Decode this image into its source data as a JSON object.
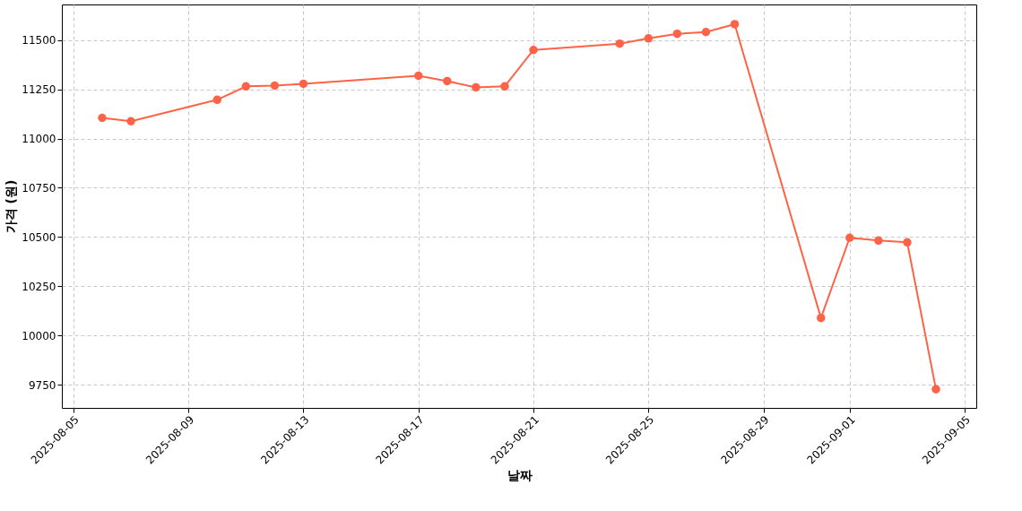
{
  "chart_data": {
    "type": "line",
    "xlabel": "날짜",
    "ylabel": "가격 (원)",
    "x": [
      "2025-08-06",
      "2025-08-07",
      "2025-08-10",
      "2025-08-11",
      "2025-08-12",
      "2025-08-13",
      "2025-08-17",
      "2025-08-18",
      "2025-08-19",
      "2025-08-20",
      "2025-08-21",
      "2025-08-24",
      "2025-08-25",
      "2025-08-26",
      "2025-08-27",
      "2025-08-28",
      "2025-08-31",
      "2025-09-01",
      "2025-09-02",
      "2025-09-03",
      "2025-09-04"
    ],
    "series": [
      {
        "color": "#ff6347",
        "values": [
          11105,
          11088,
          11197,
          11265,
          11269,
          11278,
          11319,
          11292,
          11260,
          11265,
          11450,
          11482,
          11509,
          11532,
          11541,
          11581,
          10089,
          10496,
          10482,
          10473,
          9727
        ]
      }
    ],
    "xlim": [
      "2025-08-04T14:20",
      "2025-09-05T09:40"
    ],
    "xticks": [
      "2025-08-05",
      "2025-08-09",
      "2025-08-13",
      "2025-08-17",
      "2025-08-21",
      "2025-08-25",
      "2025-08-29",
      "2025-09-01",
      "2025-09-05"
    ],
    "ylim": [
      9632,
      11681
    ],
    "yticks": [
      9750,
      10000,
      10250,
      10500,
      10750,
      11000,
      11250,
      11500
    ],
    "grid": true,
    "marker": "circle",
    "line_style": "solid"
  }
}
